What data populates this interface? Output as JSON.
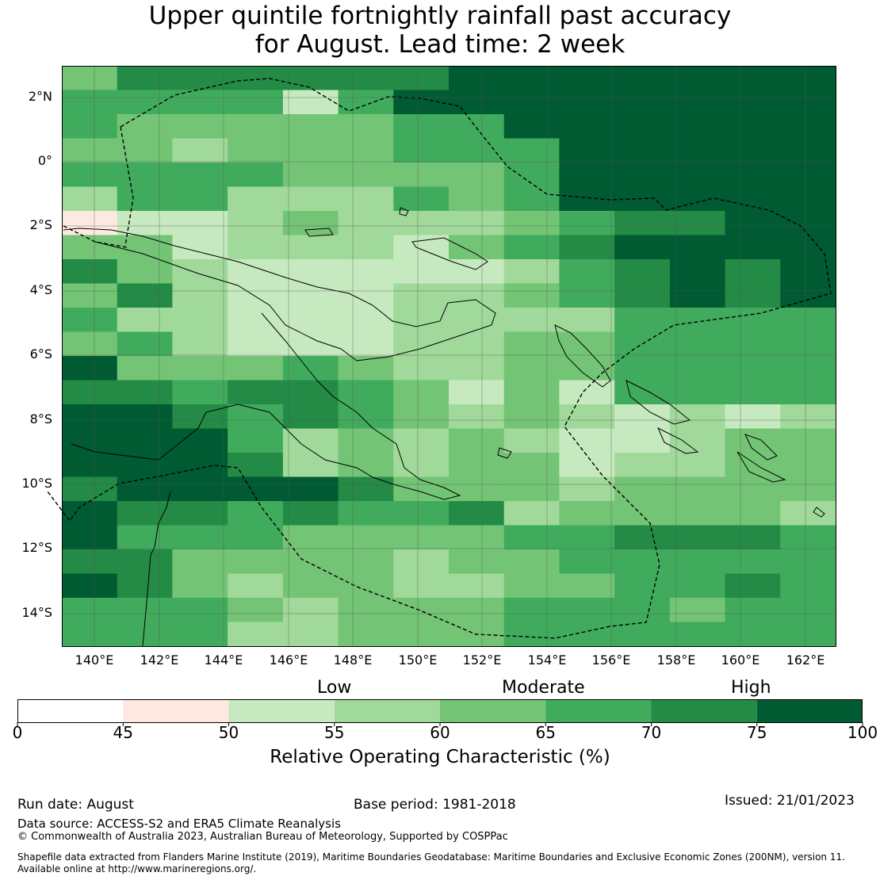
{
  "title_line1": "Upper quintile fortnightly rainfall past accuracy",
  "title_line2": "for August. Lead time: 2 week",
  "lat_labels": [
    "2°N",
    "0°",
    "2°S",
    "4°S",
    "6°S",
    "8°S",
    "10°S",
    "12°S",
    "14°S"
  ],
  "lon_labels": [
    "140°E",
    "142°E",
    "144°E",
    "146°E",
    "148°E",
    "150°E",
    "152°E",
    "154°E",
    "156°E",
    "158°E",
    "160°E",
    "162°E"
  ],
  "colorbar": {
    "categories": [
      "Low",
      "Moderate",
      "High"
    ],
    "ticks": [
      "0",
      "45",
      "50",
      "55",
      "60",
      "65",
      "70",
      "75",
      "100"
    ],
    "colors": [
      "#ffffff",
      "#fde9e1",
      "#c7e9c0",
      "#a1d99b",
      "#74c476",
      "#41ab5d",
      "#238b45",
      "#005a32"
    ],
    "label": "Relative Operating Characteristic (%)"
  },
  "palette": [
    "#ffffff",
    "#fde9e1",
    "#c7e9c0",
    "#a1d99b",
    "#74c476",
    "#41ab5d",
    "#238b45",
    "#005a32"
  ],
  "grid_rows": [
    "46666667777777",
    "55552577777777",
    "54444455777777",
    "44344455577777",
    "55554444577777",
    "35533354577777",
    "12234333456677",
    "44233324567777",
    "64322222356767",
    "46322233456767",
    "53322233335555",
    "45322233445555",
    "74445433445555",
    "66566542425555",
    "77656543432323",
    "77753434322344",
    "77763434423344",
    "67777644434444",
    "76656556344443",
    "75554444556665",
    "66444434455555",
    "76434433445565",
    "55543444555455",
    "55533444555555"
  ],
  "footer": {
    "run_date": "Run date: August",
    "base_period": "Base period: 1981-2018",
    "issued": "Issued: 21/01/2023",
    "data_source": "Data source: ACCESS-S2 and ERA5 Climate Reanalysis",
    "copyright": "© Commonwealth of Australia 2023, Australian Bureau of Meteorology, Supported by COSPPac",
    "shapefile_line1": "Shapefile data extracted from Flanders Marine Institute (2019), Maritime Boundaries Geodatabase: Maritime Boundaries and Exclusive Economic Zones (200NM), version 11.",
    "shapefile_line2": "Available online at http://www.marineregions.org/."
  }
}
